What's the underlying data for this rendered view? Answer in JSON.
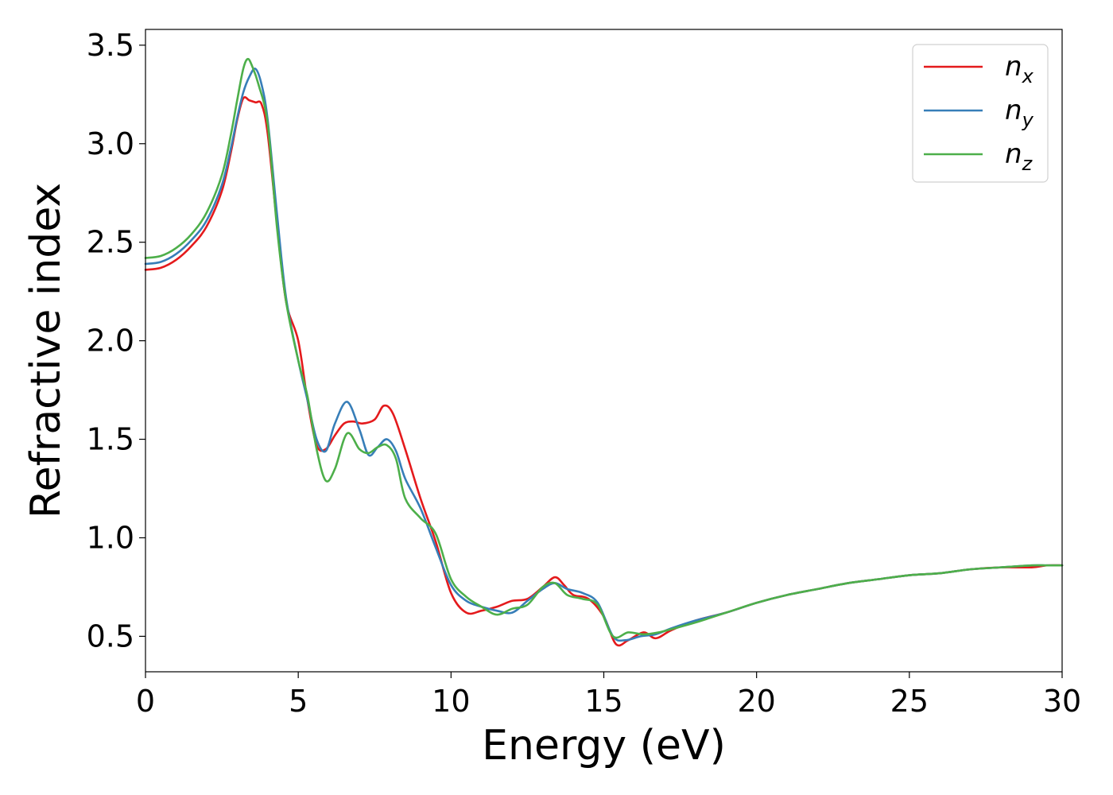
{
  "chart_data": {
    "type": "line",
    "title": "",
    "xlabel": "Energy (eV)",
    "ylabel": "Refractive index",
    "xlim": [
      0,
      30
    ],
    "ylim": [
      0.32,
      3.58
    ],
    "xticks": [
      0,
      5,
      10,
      15,
      20,
      25,
      30
    ],
    "xtick_labels": [
      "0",
      "5",
      "10",
      "15",
      "20",
      "25",
      "30"
    ],
    "yticks": [
      0.5,
      1.0,
      1.5,
      2.0,
      2.5,
      3.0,
      3.5
    ],
    "ytick_labels": [
      "0.5",
      "1.0",
      "1.5",
      "2.0",
      "2.5",
      "3.0",
      "3.5"
    ],
    "grid": false,
    "legend_position": "top-right",
    "series": [
      {
        "name": "n_x",
        "label_main": "n",
        "label_sub": "x",
        "color": "#e41a1c",
        "x": [
          0,
          0.5,
          1.0,
          1.5,
          2.0,
          2.5,
          2.8,
          3.0,
          3.2,
          3.4,
          3.6,
          3.8,
          4.0,
          4.3,
          4.6,
          5.0,
          5.3,
          5.6,
          5.9,
          6.2,
          6.5,
          6.8,
          7.1,
          7.5,
          7.8,
          8.1,
          8.5,
          9.0,
          9.5,
          10.0,
          10.5,
          11.0,
          11.5,
          12.0,
          12.5,
          13.0,
          13.4,
          13.7,
          14.0,
          14.5,
          15.0,
          15.4,
          15.8,
          16.3,
          16.7,
          17.2,
          18.0,
          19.0,
          20.0,
          21.0,
          22.0,
          23.0,
          24.0,
          25.0,
          26.0,
          27.0,
          28.0,
          29.0,
          29.5,
          30.0
        ],
        "values": [
          2.36,
          2.37,
          2.41,
          2.48,
          2.58,
          2.76,
          2.96,
          3.12,
          3.23,
          3.22,
          3.21,
          3.2,
          3.05,
          2.6,
          2.2,
          2.0,
          1.7,
          1.47,
          1.45,
          1.52,
          1.58,
          1.59,
          1.58,
          1.6,
          1.67,
          1.63,
          1.45,
          1.2,
          0.98,
          0.72,
          0.62,
          0.63,
          0.65,
          0.68,
          0.69,
          0.75,
          0.8,
          0.76,
          0.71,
          0.69,
          0.6,
          0.46,
          0.48,
          0.52,
          0.49,
          0.53,
          0.58,
          0.62,
          0.67,
          0.71,
          0.74,
          0.77,
          0.79,
          0.81,
          0.82,
          0.84,
          0.85,
          0.85,
          0.86,
          0.86
        ]
      },
      {
        "name": "n_y",
        "label_main": "n",
        "label_sub": "y",
        "color": "#377eb8",
        "x": [
          0,
          0.5,
          1.0,
          1.5,
          2.0,
          2.5,
          2.8,
          3.0,
          3.2,
          3.4,
          3.6,
          3.8,
          4.0,
          4.3,
          4.6,
          5.0,
          5.3,
          5.6,
          5.9,
          6.2,
          6.6,
          7.0,
          7.3,
          7.6,
          7.9,
          8.2,
          8.5,
          9.0,
          9.5,
          10.0,
          10.5,
          11.0,
          11.5,
          12.0,
          12.5,
          13.0,
          13.4,
          13.8,
          14.3,
          14.8,
          15.3,
          15.7,
          16.2,
          16.7,
          17.2,
          18.0,
          19.0,
          20.0,
          21.0,
          22.0,
          23.0,
          24.0,
          25.0,
          26.0,
          27.0,
          28.0,
          29.0,
          29.5,
          30.0
        ],
        "values": [
          2.39,
          2.4,
          2.44,
          2.51,
          2.61,
          2.79,
          2.98,
          3.13,
          3.26,
          3.34,
          3.38,
          3.3,
          3.12,
          2.65,
          2.22,
          1.9,
          1.7,
          1.5,
          1.44,
          1.58,
          1.69,
          1.55,
          1.42,
          1.46,
          1.5,
          1.44,
          1.3,
          1.15,
          0.95,
          0.76,
          0.68,
          0.65,
          0.63,
          0.62,
          0.68,
          0.74,
          0.77,
          0.74,
          0.72,
          0.67,
          0.5,
          0.48,
          0.5,
          0.51,
          0.54,
          0.58,
          0.62,
          0.67,
          0.71,
          0.74,
          0.77,
          0.79,
          0.81,
          0.82,
          0.84,
          0.85,
          0.86,
          0.86,
          0.86
        ]
      },
      {
        "name": "n_z",
        "label_main": "n",
        "label_sub": "z",
        "color": "#4daf4a",
        "x": [
          0,
          0.5,
          1.0,
          1.5,
          2.0,
          2.5,
          2.8,
          3.0,
          3.2,
          3.35,
          3.5,
          3.7,
          4.0,
          4.3,
          4.6,
          5.0,
          5.3,
          5.6,
          5.9,
          6.2,
          6.6,
          7.0,
          7.3,
          7.6,
          7.9,
          8.2,
          8.5,
          9.0,
          9.5,
          10.0,
          10.5,
          11.0,
          11.5,
          12.0,
          12.5,
          13.0,
          13.4,
          13.8,
          14.3,
          14.8,
          15.3,
          15.8,
          16.3,
          16.8,
          17.3,
          18.0,
          19.0,
          20.0,
          21.0,
          22.0,
          23.0,
          24.0,
          25.0,
          26.0,
          27.0,
          28.0,
          29.0,
          29.5,
          30.0
        ],
        "values": [
          2.42,
          2.43,
          2.47,
          2.54,
          2.65,
          2.84,
          3.05,
          3.22,
          3.38,
          3.43,
          3.39,
          3.3,
          3.1,
          2.58,
          2.2,
          1.9,
          1.72,
          1.45,
          1.29,
          1.35,
          1.53,
          1.45,
          1.43,
          1.46,
          1.47,
          1.4,
          1.2,
          1.1,
          1.02,
          0.79,
          0.7,
          0.65,
          0.61,
          0.64,
          0.66,
          0.75,
          0.77,
          0.71,
          0.69,
          0.66,
          0.5,
          0.52,
          0.51,
          0.52,
          0.54,
          0.57,
          0.62,
          0.67,
          0.71,
          0.74,
          0.77,
          0.79,
          0.81,
          0.82,
          0.84,
          0.85,
          0.86,
          0.86,
          0.86
        ]
      }
    ]
  }
}
